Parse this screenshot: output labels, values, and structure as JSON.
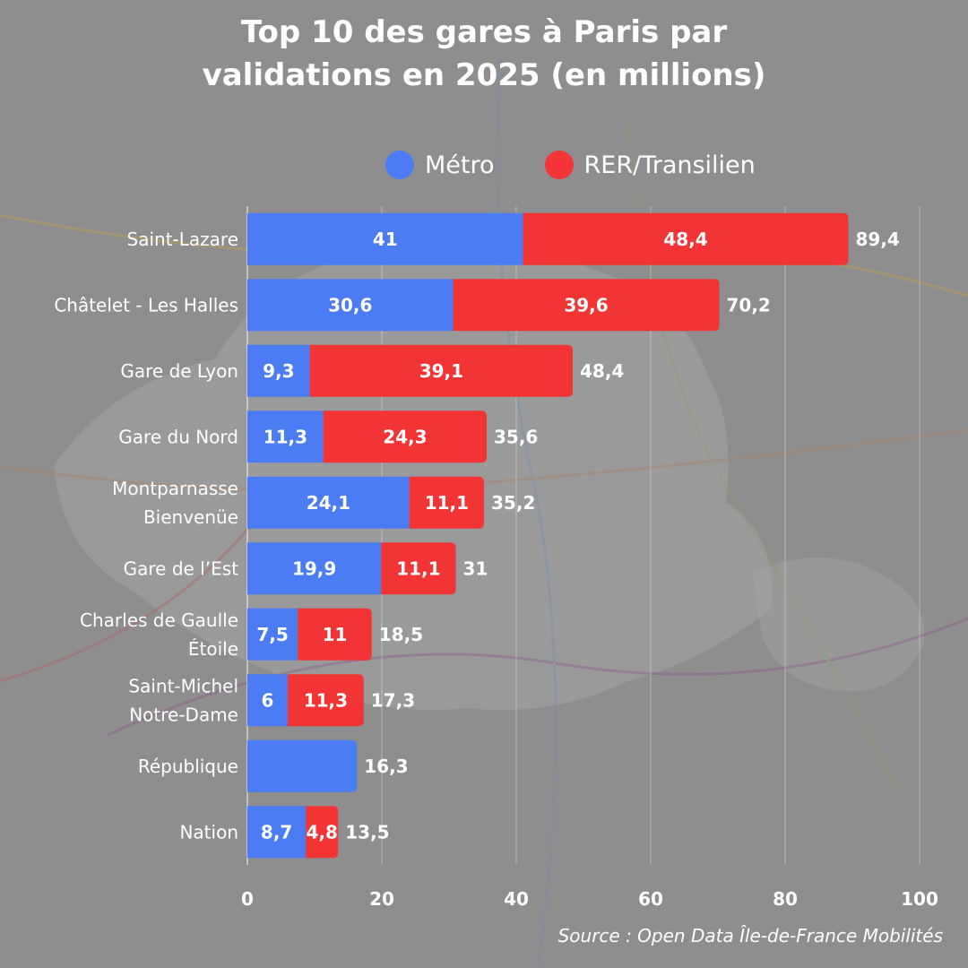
{
  "title_line1": "Top 10 des gares à Paris par",
  "title_line2": "validations en 2025 (en millions)",
  "source": "Source : Open Data Île-de-France Mobilités",
  "colors": {
    "metro": "#4b7cf3",
    "rer": "#f23434",
    "background": "#8f8f8f"
  },
  "chart_data": {
    "type": "bar",
    "orientation": "horizontal",
    "stacked": true,
    "title": "Top 10 des gares à Paris par validations en 2025 (en millions)",
    "categories": [
      "Saint-Lazare",
      "Châtelet - Les Halles",
      "Gare de Lyon",
      "Gare du Nord",
      "Montparnasse Bienvenüe",
      "Gare de l’Est",
      "Charles de Gaulle Étoile",
      "Saint-Michel Notre-Dame",
      "République",
      "Nation"
    ],
    "category_lines": [
      [
        "Saint-Lazare"
      ],
      [
        "Châtelet - Les Halles"
      ],
      [
        "Gare de Lyon"
      ],
      [
        "Gare du Nord"
      ],
      [
        "Montparnasse",
        "Bienvenüe"
      ],
      [
        "Gare de l’Est"
      ],
      [
        "Charles de Gaulle",
        "Étoile"
      ],
      [
        "Saint-Michel",
        "Notre-Dame"
      ],
      [
        "République"
      ],
      [
        "Nation"
      ]
    ],
    "series": [
      {
        "name": "Métro",
        "values": [
          41,
          30.6,
          9.3,
          11.3,
          24.1,
          19.9,
          7.5,
          6,
          16.3,
          8.7
        ],
        "labels": [
          "41",
          "30,6",
          "9,3",
          "11,3",
          "24,1",
          "19,9",
          "7,5",
          "6",
          "",
          "8,7"
        ]
      },
      {
        "name": "RER/Transilien",
        "values": [
          48.4,
          39.6,
          39.1,
          24.3,
          11.1,
          11.1,
          11,
          11.3,
          0,
          4.8
        ],
        "labels": [
          "48,4",
          "39,6",
          "39,1",
          "24,3",
          "11,1",
          "11,1",
          "11",
          "11,3",
          "",
          "4,8"
        ]
      }
    ],
    "totals": [
      89.4,
      70.2,
      48.4,
      35.6,
      35.2,
      31,
      18.5,
      17.3,
      16.3,
      13.5
    ],
    "total_labels": [
      "89,4",
      "70,2",
      "48,4",
      "35,6",
      "35,2",
      "31",
      "18,5",
      "17,3",
      "16,3",
      "13,5"
    ],
    "xlim": [
      0,
      100
    ],
    "xticks": [
      0,
      20,
      40,
      60,
      80,
      100
    ],
    "grid": true,
    "legend_position": "top"
  }
}
